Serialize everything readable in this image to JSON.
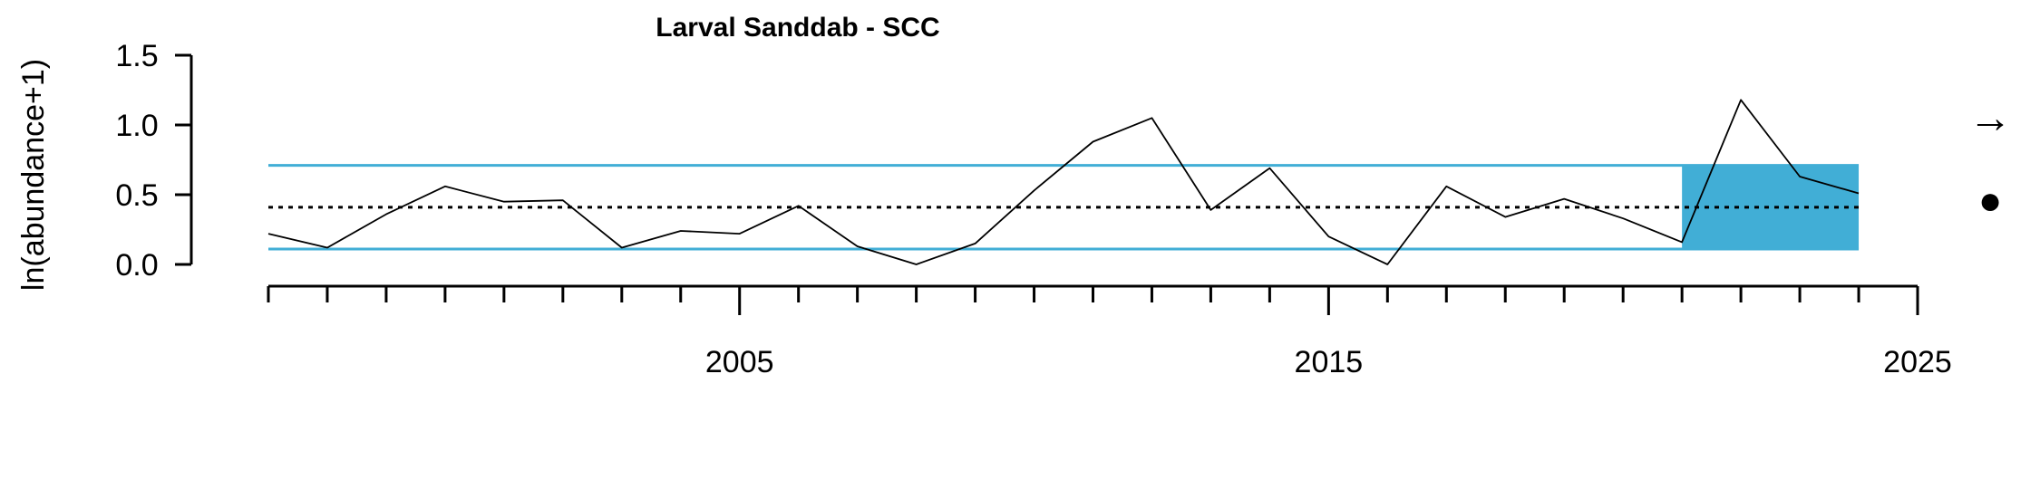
{
  "chart_data": {
    "type": "line",
    "title": "Larval Sanddab - SCC",
    "xlabel": "",
    "ylabel": "ln(abundance+1)",
    "xlim": [
      1997,
      2025
    ],
    "ylim": [
      0,
      1.5
    ],
    "x_ticks_major": [
      2005,
      2015,
      2025
    ],
    "x_tick_labels": [
      "2005",
      "2015",
      "2025"
    ],
    "x_ticks_minor": [
      1997,
      1998,
      1999,
      2000,
      2001,
      2002,
      2003,
      2004,
      2005,
      2006,
      2007,
      2008,
      2009,
      2010,
      2011,
      2012,
      2013,
      2014,
      2015,
      2016,
      2017,
      2018,
      2019,
      2020,
      2021,
      2022,
      2023,
      2024,
      2025
    ],
    "y_ticks": [
      0,
      0.5,
      1.0,
      1.5
    ],
    "y_tick_labels": [
      "0.0",
      "0.5",
      "1.0",
      "1.5"
    ],
    "grid": false,
    "series": [
      {
        "x": [
          1997,
          1998,
          1999,
          2000,
          2001,
          2002,
          2003,
          2004,
          2005,
          2006,
          2007,
          2008,
          2009,
          2010,
          2011,
          2012,
          2013,
          2014,
          2015,
          2016,
          2017,
          2018,
          2019,
          2020,
          2021,
          2022,
          2023,
          2024
        ],
        "values": [
          0.22,
          0.12,
          0.36,
          0.56,
          0.45,
          0.46,
          0.12,
          0.24,
          0.22,
          0.42,
          0.13,
          0.0,
          0.15,
          0.53,
          0.88,
          1.05,
          0.39,
          0.69,
          0.2,
          0.0,
          0.56,
          0.34,
          0.47,
          0.33,
          0.16,
          1.18,
          0.63,
          0.51
        ],
        "color": "#000000"
      }
    ],
    "reference_lines": {
      "mean": 0.41,
      "upper": 0.71,
      "lower": 0.11,
      "mean_style": "dotted",
      "bound_color": "#41AED6"
    },
    "highlight_region": {
      "x_start": 2021,
      "x_end": 2024,
      "y_low": 0.11,
      "y_high": 0.71,
      "color": "#41AED6"
    },
    "trend_symbol": "→",
    "status_symbol": "●"
  }
}
